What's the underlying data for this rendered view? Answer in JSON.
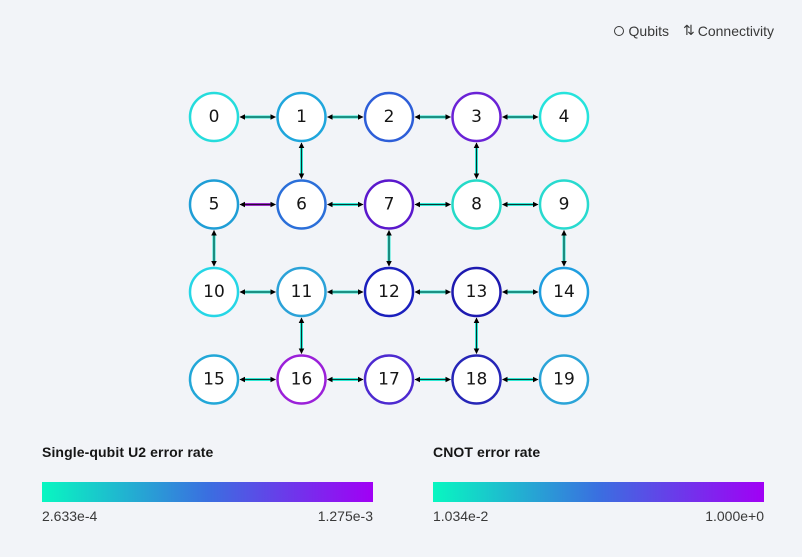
{
  "legend": {
    "qubits_label": "Qubits",
    "connectivity_label": "Connectivity",
    "qubits_icon": "circle-outline-icon",
    "connectivity_icon": "swap-vertical-icon"
  },
  "colors": {
    "scale_low": "#08f7c1",
    "scale_mid": "#3a6fe0",
    "scale_high": "#a100f5",
    "edge_default": "#2ee8d4",
    "edge_high": "#9b2cc6",
    "arrow": "#000000"
  },
  "qubits": [
    {
      "id": "0",
      "color": "#25dcdc"
    },
    {
      "id": "1",
      "color": "#1fa6dc"
    },
    {
      "id": "2",
      "color": "#2d5ed8"
    },
    {
      "id": "3",
      "color": "#6a22d6"
    },
    {
      "id": "4",
      "color": "#25e3dc"
    },
    {
      "id": "5",
      "color": "#1f9ed6"
    },
    {
      "id": "6",
      "color": "#2b6fd9"
    },
    {
      "id": "7",
      "color": "#5a18cc"
    },
    {
      "id": "8",
      "color": "#25dac8"
    },
    {
      "id": "9",
      "color": "#28dacf"
    },
    {
      "id": "10",
      "color": "#25d6e6"
    },
    {
      "id": "11",
      "color": "#2ba2d8"
    },
    {
      "id": "12",
      "color": "#1a1fbd"
    },
    {
      "id": "13",
      "color": "#1e1ab0"
    },
    {
      "id": "14",
      "color": "#1f9ee0"
    },
    {
      "id": "15",
      "color": "#22a7d8"
    },
    {
      "id": "16",
      "color": "#9b20d9"
    },
    {
      "id": "17",
      "color": "#4d2ad0"
    },
    {
      "id": "18",
      "color": "#2626b7"
    },
    {
      "id": "19",
      "color": "#2ba4d8"
    }
  ],
  "connections": [
    {
      "from": "0",
      "to": "1",
      "color": "#2ee8d4"
    },
    {
      "from": "1",
      "to": "2",
      "color": "#2ee8d4"
    },
    {
      "from": "2",
      "to": "3",
      "color": "#2ee8d4"
    },
    {
      "from": "3",
      "to": "4",
      "color": "#2ee8d4"
    },
    {
      "from": "5",
      "to": "6",
      "color": "#9b2cc6"
    },
    {
      "from": "6",
      "to": "7",
      "color": "#2ee8d4"
    },
    {
      "from": "7",
      "to": "8",
      "color": "#2ee8d4"
    },
    {
      "from": "8",
      "to": "9",
      "color": "#2ee8d4"
    },
    {
      "from": "10",
      "to": "11",
      "color": "#2ee8d4"
    },
    {
      "from": "11",
      "to": "12",
      "color": "#2ee8d4"
    },
    {
      "from": "12",
      "to": "13",
      "color": "#2ee8d4"
    },
    {
      "from": "13",
      "to": "14",
      "color": "#2ee8d4"
    },
    {
      "from": "15",
      "to": "16",
      "color": "#2ee8d4"
    },
    {
      "from": "16",
      "to": "17",
      "color": "#2ee8d4"
    },
    {
      "from": "17",
      "to": "18",
      "color": "#2ee8d4"
    },
    {
      "from": "18",
      "to": "19",
      "color": "#2ee8d4"
    },
    {
      "from": "1",
      "to": "6",
      "color": "#2ee8d4"
    },
    {
      "from": "3",
      "to": "8",
      "color": "#2ee8d4"
    },
    {
      "from": "5",
      "to": "10",
      "color": "#2ee8d4"
    },
    {
      "from": "7",
      "to": "12",
      "color": "#2ee8d4"
    },
    {
      "from": "9",
      "to": "14",
      "color": "#2ee8d4"
    },
    {
      "from": "11",
      "to": "16",
      "color": "#2ee8d4"
    },
    {
      "from": "13",
      "to": "18",
      "color": "#2ee8d4"
    }
  ],
  "single_qubit_scale": {
    "title": "Single-qubit U2 error rate",
    "min": "2.633e-4",
    "max": "1.275e-3"
  },
  "cnot_scale": {
    "title": "CNOT error rate",
    "min": "1.034e-2",
    "max": "1.000e+0"
  }
}
